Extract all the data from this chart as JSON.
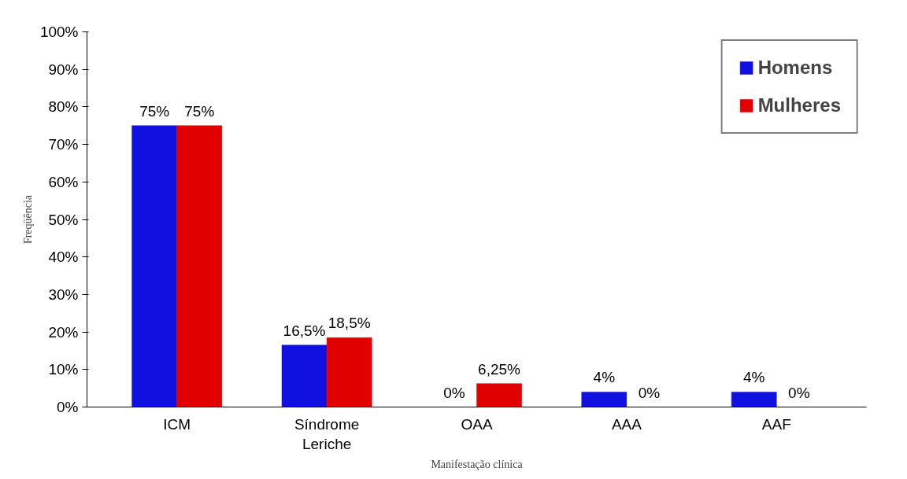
{
  "chart_data": {
    "type": "bar",
    "xlabel": "Manifestação clínica",
    "ylabel": "Freqüência",
    "categories": [
      "ICM",
      "Síndrome Leriche",
      "OAA",
      "AAA",
      "AAF"
    ],
    "series": [
      {
        "name": "Homens",
        "color": "#1010e0",
        "values": [
          75,
          16.5,
          0,
          4,
          4
        ],
        "value_labels": [
          "75%",
          "16,5%",
          "0%",
          "4%",
          "4%"
        ]
      },
      {
        "name": "Mulheres",
        "color": "#e00000",
        "values": [
          75,
          18.5,
          6.25,
          0,
          0
        ],
        "value_labels": [
          "75%",
          "18,5%",
          "6,25%",
          "0%",
          "0%"
        ]
      }
    ],
    "ylim": [
      0,
      100
    ],
    "yticks": [
      {
        "value": 0,
        "label": "0%"
      },
      {
        "value": 10,
        "label": "10%"
      },
      {
        "value": 20,
        "label": "20%"
      },
      {
        "value": 30,
        "label": "30%"
      },
      {
        "value": 40,
        "label": "40%"
      },
      {
        "value": 50,
        "label": "50%"
      },
      {
        "value": 60,
        "label": "60%"
      },
      {
        "value": 70,
        "label": "70%"
      },
      {
        "value": 80,
        "label": "80%"
      },
      {
        "value": 90,
        "label": "90%"
      },
      {
        "value": 100,
        "label": "100%"
      }
    ],
    "grid": false,
    "legend": "top right"
  }
}
